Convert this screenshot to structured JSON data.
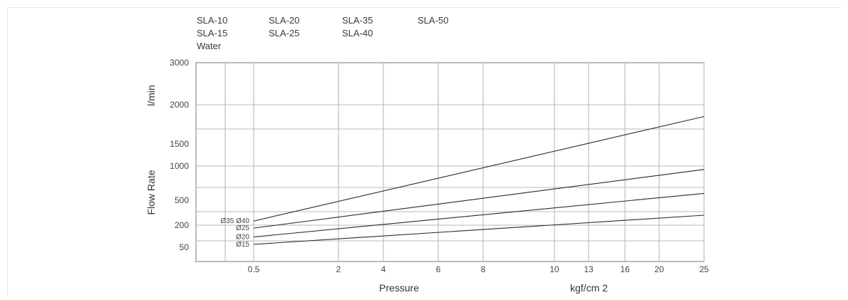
{
  "legend": {
    "col1": [
      "SLA-10",
      "SLA-15",
      "Water"
    ],
    "col2": [
      "SLA-20",
      "SLA-25"
    ],
    "col3": [
      "SLA-35",
      "SLA-40"
    ],
    "col4": [
      "SLA-50"
    ]
  },
  "chart_data": {
    "type": "line",
    "title": "",
    "xlabel": "Pressure",
    "x_unit": "kgf/cm 2",
    "ylabel": "Flow Rate",
    "y_unit": "l/min",
    "x_ticks": [
      "0.5",
      "2",
      "4",
      "6",
      "8",
      "10",
      "13",
      "16",
      "20",
      "25"
    ],
    "y_ticks": [
      "3000",
      "2000",
      "1500",
      "1000",
      "500",
      "200",
      "50"
    ],
    "grid": true,
    "series": [
      {
        "name": "Ø35 Ø40",
        "x": [
          "0.5",
          "25"
        ],
        "y": [
          250,
          1850
        ]
      },
      {
        "name": "Ø25",
        "x": [
          "0.5",
          "25"
        ],
        "y": [
          180,
          950
        ]
      },
      {
        "name": "Ø20",
        "x": [
          "0.5",
          "25"
        ],
        "y": [
          120,
          600
        ]
      },
      {
        "name": "Ø15",
        "x": [
          "0.5",
          "25"
        ],
        "y": [
          70,
          320
        ]
      }
    ]
  }
}
